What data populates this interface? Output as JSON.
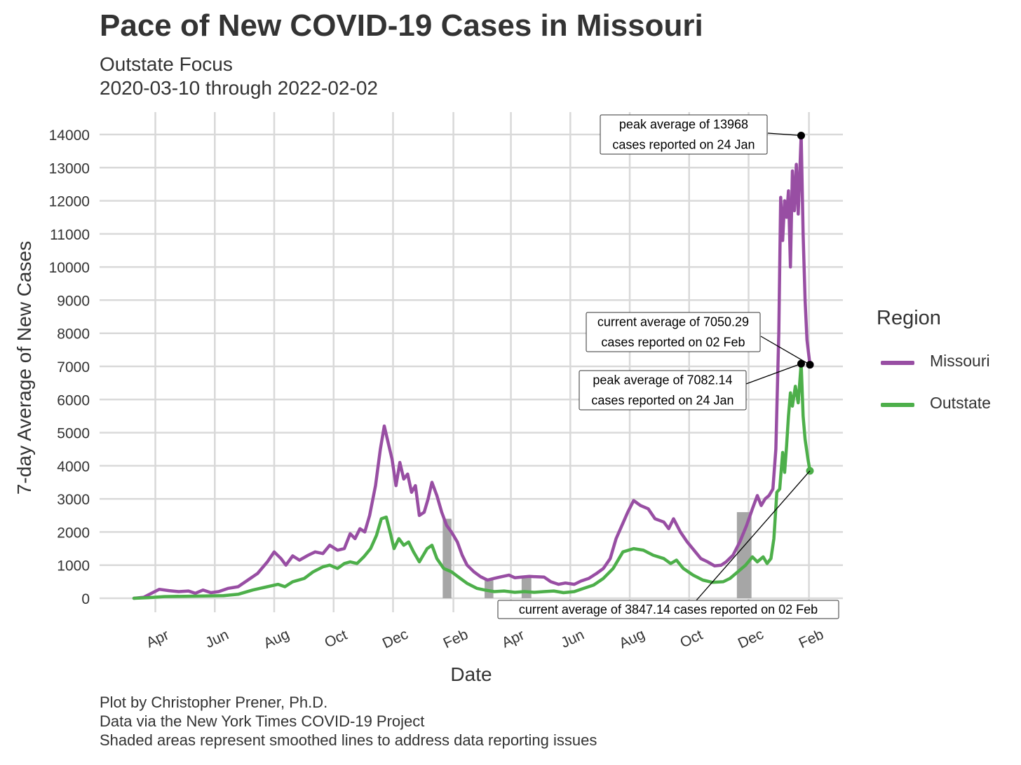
{
  "title": "Pace of New COVID-19 Cases in Missouri",
  "subtitle_1": "Outstate Focus",
  "subtitle_2": "2020-03-10 through 2022-02-02",
  "caption": [
    "Plot by Christopher Prener, Ph.D.",
    "Data via the New York Times COVID-19 Project",
    "Shaded areas represent smoothed lines to address data reporting issues"
  ],
  "legend": {
    "title": "Region",
    "items": [
      {
        "label": "Missouri",
        "color": "#984ea3"
      },
      {
        "label": "Outstate",
        "color": "#4daf4a"
      }
    ]
  },
  "chart_data": {
    "type": "line",
    "title": "Pace of New COVID-19 Cases in Missouri",
    "subtitle": "Outstate Focus\n2020-03-10 through 2022-02-02",
    "xlabel": "Date",
    "ylabel": "7-day Average of New Cases",
    "xlim": [
      "2020-03-10",
      "2022-02-02"
    ],
    "ylim": [
      0,
      14000
    ],
    "y_ticks": [
      0,
      1000,
      2000,
      3000,
      4000,
      5000,
      6000,
      7000,
      8000,
      9000,
      10000,
      11000,
      12000,
      13000,
      14000
    ],
    "x_ticks": [
      {
        "date": "2020-04-01",
        "label": "Apr"
      },
      {
        "date": "2020-06-01",
        "label": "Jun"
      },
      {
        "date": "2020-08-01",
        "label": "Aug"
      },
      {
        "date": "2020-10-01",
        "label": "Oct"
      },
      {
        "date": "2020-12-01",
        "label": "Dec"
      },
      {
        "date": "2021-02-01",
        "label": "Feb"
      },
      {
        "date": "2021-04-01",
        "label": "Apr"
      },
      {
        "date": "2021-06-01",
        "label": "Jun"
      },
      {
        "date": "2021-08-01",
        "label": "Aug"
      },
      {
        "date": "2021-10-01",
        "label": "Oct"
      },
      {
        "date": "2021-12-01",
        "label": "Dec"
      },
      {
        "date": "2022-02-01",
        "label": "Feb"
      }
    ],
    "grid": true,
    "legend_position": "right",
    "shaded_periods": [
      {
        "start": "2021-01-21",
        "end": "2021-01-30",
        "top": 2400
      },
      {
        "start": "2021-03-05",
        "end": "2021-03-14",
        "top": 600
      },
      {
        "start": "2021-04-12",
        "end": "2021-04-22",
        "top": 650
      },
      {
        "start": "2021-11-19",
        "end": "2021-12-04",
        "top": 2600
      }
    ],
    "series": [
      {
        "name": "Missouri",
        "color": "#984ea3",
        "points": [
          [
            "2020-03-10",
            0
          ],
          [
            "2020-03-20",
            30
          ],
          [
            "2020-03-28",
            150
          ],
          [
            "2020-04-05",
            270
          ],
          [
            "2020-04-15",
            230
          ],
          [
            "2020-04-25",
            200
          ],
          [
            "2020-05-05",
            220
          ],
          [
            "2020-05-12",
            150
          ],
          [
            "2020-05-20",
            250
          ],
          [
            "2020-05-28",
            170
          ],
          [
            "2020-06-05",
            200
          ],
          [
            "2020-06-15",
            300
          ],
          [
            "2020-06-25",
            350
          ],
          [
            "2020-07-05",
            550
          ],
          [
            "2020-07-15",
            750
          ],
          [
            "2020-07-25",
            1100
          ],
          [
            "2020-08-01",
            1400
          ],
          [
            "2020-08-08",
            1200
          ],
          [
            "2020-08-13",
            1000
          ],
          [
            "2020-08-20",
            1280
          ],
          [
            "2020-08-27",
            1150
          ],
          [
            "2020-09-05",
            1300
          ],
          [
            "2020-09-12",
            1400
          ],
          [
            "2020-09-20",
            1350
          ],
          [
            "2020-09-27",
            1600
          ],
          [
            "2020-10-05",
            1450
          ],
          [
            "2020-10-12",
            1500
          ],
          [
            "2020-10-18",
            1950
          ],
          [
            "2020-10-23",
            1800
          ],
          [
            "2020-10-28",
            2100
          ],
          [
            "2020-11-02",
            2000
          ],
          [
            "2020-11-07",
            2500
          ],
          [
            "2020-11-13",
            3400
          ],
          [
            "2020-11-18",
            4500
          ],
          [
            "2020-11-22",
            5200
          ],
          [
            "2020-11-26",
            4700
          ],
          [
            "2020-11-30",
            4200
          ],
          [
            "2020-12-04",
            3400
          ],
          [
            "2020-12-08",
            4100
          ],
          [
            "2020-12-12",
            3600
          ],
          [
            "2020-12-16",
            3750
          ],
          [
            "2020-12-20",
            3200
          ],
          [
            "2020-12-24",
            3400
          ],
          [
            "2020-12-28",
            2500
          ],
          [
            "2021-01-02",
            2600
          ],
          [
            "2021-01-06",
            3000
          ],
          [
            "2021-01-10",
            3500
          ],
          [
            "2021-01-15",
            3100
          ],
          [
            "2021-01-20",
            2600
          ],
          [
            "2021-01-25",
            2200
          ],
          [
            "2021-01-30",
            2000
          ],
          [
            "2021-02-05",
            1700
          ],
          [
            "2021-02-10",
            1300
          ],
          [
            "2021-02-15",
            1000
          ],
          [
            "2021-02-22",
            800
          ],
          [
            "2021-03-01",
            650
          ],
          [
            "2021-03-08",
            550
          ],
          [
            "2021-03-15",
            600
          ],
          [
            "2021-03-22",
            650
          ],
          [
            "2021-03-30",
            700
          ],
          [
            "2021-04-05",
            620
          ],
          [
            "2021-04-12",
            640
          ],
          [
            "2021-04-20",
            660
          ],
          [
            "2021-04-27",
            650
          ],
          [
            "2021-05-05",
            640
          ],
          [
            "2021-05-12",
            500
          ],
          [
            "2021-05-20",
            420
          ],
          [
            "2021-05-27",
            460
          ],
          [
            "2021-06-05",
            420
          ],
          [
            "2021-06-12",
            520
          ],
          [
            "2021-06-20",
            600
          ],
          [
            "2021-06-28",
            750
          ],
          [
            "2021-07-05",
            900
          ],
          [
            "2021-07-12",
            1200
          ],
          [
            "2021-07-18",
            1800
          ],
          [
            "2021-07-24",
            2200
          ],
          [
            "2021-07-30",
            2600
          ],
          [
            "2021-08-05",
            2950
          ],
          [
            "2021-08-12",
            2800
          ],
          [
            "2021-08-20",
            2700
          ],
          [
            "2021-08-27",
            2400
          ],
          [
            "2021-09-05",
            2300
          ],
          [
            "2021-09-10",
            2100
          ],
          [
            "2021-09-15",
            2400
          ],
          [
            "2021-09-22",
            2000
          ],
          [
            "2021-09-29",
            1700
          ],
          [
            "2021-10-06",
            1450
          ],
          [
            "2021-10-13",
            1200
          ],
          [
            "2021-10-20",
            1100
          ],
          [
            "2021-10-27",
            980
          ],
          [
            "2021-11-03",
            1000
          ],
          [
            "2021-11-08",
            1100
          ],
          [
            "2021-11-15",
            1300
          ],
          [
            "2021-11-22",
            1700
          ],
          [
            "2021-11-29",
            2200
          ],
          [
            "2021-12-05",
            2700
          ],
          [
            "2021-12-10",
            3100
          ],
          [
            "2021-12-14",
            2800
          ],
          [
            "2021-12-18",
            3000
          ],
          [
            "2021-12-22",
            3100
          ],
          [
            "2021-12-26",
            3300
          ],
          [
            "2021-12-29",
            4500
          ],
          [
            "2022-01-01",
            8000
          ],
          [
            "2022-01-03",
            12100
          ],
          [
            "2022-01-05",
            10800
          ],
          [
            "2022-01-07",
            12000
          ],
          [
            "2022-01-09",
            11500
          ],
          [
            "2022-01-11",
            12300
          ],
          [
            "2022-01-13",
            10000
          ],
          [
            "2022-01-15",
            12900
          ],
          [
            "2022-01-17",
            11700
          ],
          [
            "2022-01-19",
            13100
          ],
          [
            "2022-01-21",
            11600
          ],
          [
            "2022-01-24",
            13968
          ],
          [
            "2022-01-26",
            11000
          ],
          [
            "2022-01-28",
            9000
          ],
          [
            "2022-01-30",
            7800
          ],
          [
            "2022-02-02",
            7050.29
          ]
        ]
      },
      {
        "name": "Outstate",
        "color": "#4daf4a",
        "points": [
          [
            "2020-03-10",
            0
          ],
          [
            "2020-03-25",
            20
          ],
          [
            "2020-04-10",
            50
          ],
          [
            "2020-05-01",
            60
          ],
          [
            "2020-05-20",
            70
          ],
          [
            "2020-06-10",
            80
          ],
          [
            "2020-06-25",
            120
          ],
          [
            "2020-07-10",
            250
          ],
          [
            "2020-07-25",
            350
          ],
          [
            "2020-08-05",
            420
          ],
          [
            "2020-08-12",
            350
          ],
          [
            "2020-08-20",
            500
          ],
          [
            "2020-09-01",
            600
          ],
          [
            "2020-09-10",
            800
          ],
          [
            "2020-09-20",
            950
          ],
          [
            "2020-09-27",
            1000
          ],
          [
            "2020-10-05",
            900
          ],
          [
            "2020-10-12",
            1050
          ],
          [
            "2020-10-18",
            1100
          ],
          [
            "2020-10-25",
            1050
          ],
          [
            "2020-11-01",
            1250
          ],
          [
            "2020-11-08",
            1500
          ],
          [
            "2020-11-14",
            1900
          ],
          [
            "2020-11-19",
            2400
          ],
          [
            "2020-11-24",
            2450
          ],
          [
            "2020-11-28",
            2000
          ],
          [
            "2020-12-02",
            1500
          ],
          [
            "2020-12-07",
            1800
          ],
          [
            "2020-12-12",
            1600
          ],
          [
            "2020-12-17",
            1700
          ],
          [
            "2020-12-22",
            1400
          ],
          [
            "2020-12-28",
            1100
          ],
          [
            "2021-01-05",
            1500
          ],
          [
            "2021-01-10",
            1600
          ],
          [
            "2021-01-15",
            1200
          ],
          [
            "2021-01-22",
            900
          ],
          [
            "2021-01-30",
            800
          ],
          [
            "2021-02-08",
            600
          ],
          [
            "2021-02-15",
            450
          ],
          [
            "2021-02-25",
            300
          ],
          [
            "2021-03-05",
            250
          ],
          [
            "2021-03-15",
            200
          ],
          [
            "2021-03-25",
            220
          ],
          [
            "2021-04-05",
            180
          ],
          [
            "2021-04-15",
            200
          ],
          [
            "2021-04-25",
            180
          ],
          [
            "2021-05-05",
            200
          ],
          [
            "2021-05-15",
            220
          ],
          [
            "2021-05-25",
            170
          ],
          [
            "2021-06-05",
            200
          ],
          [
            "2021-06-15",
            300
          ],
          [
            "2021-06-25",
            400
          ],
          [
            "2021-07-05",
            600
          ],
          [
            "2021-07-15",
            900
          ],
          [
            "2021-07-25",
            1400
          ],
          [
            "2021-08-05",
            1500
          ],
          [
            "2021-08-15",
            1450
          ],
          [
            "2021-08-25",
            1300
          ],
          [
            "2021-09-05",
            1200
          ],
          [
            "2021-09-12",
            1050
          ],
          [
            "2021-09-18",
            1150
          ],
          [
            "2021-09-25",
            900
          ],
          [
            "2021-10-05",
            700
          ],
          [
            "2021-10-15",
            550
          ],
          [
            "2021-10-25",
            480
          ],
          [
            "2021-11-05",
            500
          ],
          [
            "2021-11-12",
            600
          ],
          [
            "2021-11-20",
            800
          ],
          [
            "2021-11-28",
            1000
          ],
          [
            "2021-12-05",
            1250
          ],
          [
            "2021-12-10",
            1100
          ],
          [
            "2021-12-16",
            1250
          ],
          [
            "2021-12-20",
            1050
          ],
          [
            "2021-12-24",
            1200
          ],
          [
            "2021-12-27",
            1800
          ],
          [
            "2021-12-30",
            3200
          ],
          [
            "2022-01-02",
            3300
          ],
          [
            "2022-01-05",
            4400
          ],
          [
            "2022-01-07",
            3800
          ],
          [
            "2022-01-09",
            4600
          ],
          [
            "2022-01-11",
            5500
          ],
          [
            "2022-01-13",
            6200
          ],
          [
            "2022-01-15",
            5800
          ],
          [
            "2022-01-18",
            6400
          ],
          [
            "2022-01-21",
            5900
          ],
          [
            "2022-01-24",
            7082.14
          ],
          [
            "2022-01-26",
            5500
          ],
          [
            "2022-01-28",
            4800
          ],
          [
            "2022-01-31",
            4200
          ],
          [
            "2022-02-02",
            3847.14
          ]
        ]
      }
    ],
    "annotations": [
      {
        "text": [
          "peak average of 13968",
          "cases reported on 24 Jan"
        ],
        "date": "2022-01-24",
        "value": 13968
      },
      {
        "text": [
          "current average of 7050.29",
          "cases reported on 02 Feb"
        ],
        "date": "2022-02-02",
        "value": 7050.29
      },
      {
        "text": [
          "peak average of 7082.14",
          "cases reported on 24 Jan"
        ],
        "date": "2022-01-24",
        "value": 7082.14
      },
      {
        "text": [
          "current average of 3847.14 cases reported on 02 Feb"
        ],
        "date": "2022-02-02",
        "value": 3847.14
      }
    ]
  }
}
